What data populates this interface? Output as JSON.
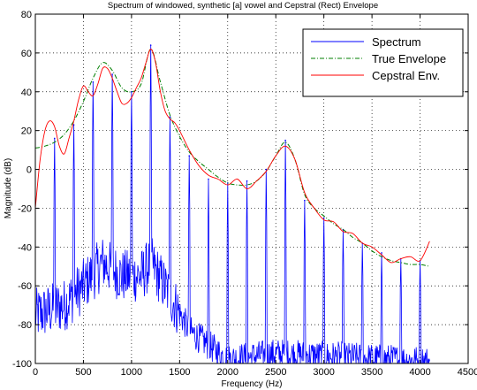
{
  "chart_data": {
    "type": "line",
    "title": "Spectrum of windowed, synthetic [a] vowel and Cepstral (Rect) Envelope",
    "xlabel": "Frequency (Hz)",
    "ylabel": "Magnitude (dB)",
    "xlim": [
      0,
      4500
    ],
    "ylim": [
      -100,
      80
    ],
    "xticks": [
      0,
      500,
      1000,
      1500,
      2000,
      2500,
      3000,
      3500,
      4000,
      4500
    ],
    "yticks": [
      -100,
      -80,
      -60,
      -40,
      -20,
      0,
      20,
      40,
      60,
      80
    ],
    "grid": true,
    "legend_position": "top-right",
    "series": [
      {
        "name": "Spectrum",
        "color": "#0000ff",
        "harmonic_spacing_hz": 200,
        "harmonic_peaks": [
          {
            "x": 200,
            "y": 16
          },
          {
            "x": 400,
            "y": 23
          },
          {
            "x": 600,
            "y": 45
          },
          {
            "x": 800,
            "y": 49
          },
          {
            "x": 1000,
            "y": 40
          },
          {
            "x": 1200,
            "y": 64
          },
          {
            "x": 1400,
            "y": 27
          },
          {
            "x": 1600,
            "y": 7
          },
          {
            "x": 1800,
            "y": -5
          },
          {
            "x": 2000,
            "y": -7
          },
          {
            "x": 2200,
            "y": -6
          },
          {
            "x": 2400,
            "y": 0
          },
          {
            "x": 2600,
            "y": 15
          },
          {
            "x": 2800,
            "y": -16
          },
          {
            "x": 3000,
            "y": -25
          },
          {
            "x": 3200,
            "y": -31
          },
          {
            "x": 3400,
            "y": -38
          },
          {
            "x": 3600,
            "y": -43
          },
          {
            "x": 3800,
            "y": -46
          },
          {
            "x": 4000,
            "y": -47
          }
        ],
        "floor_between_harmonics": [
          {
            "x": 0,
            "y": -75
          },
          {
            "x": 300,
            "y": -70
          },
          {
            "x": 500,
            "y": -60
          },
          {
            "x": 700,
            "y": -48
          },
          {
            "x": 900,
            "y": -55
          },
          {
            "x": 1100,
            "y": -55
          },
          {
            "x": 1200,
            "y": -48
          },
          {
            "x": 1400,
            "y": -65
          },
          {
            "x": 1600,
            "y": -83
          },
          {
            "x": 2000,
            "y": -98
          },
          {
            "x": 2500,
            "y": -95
          },
          {
            "x": 4500,
            "y": -100
          }
        ]
      },
      {
        "name": "True Envelope",
        "color": "#007f00",
        "x": [
          0,
          100,
          200,
          300,
          400,
          500,
          600,
          700,
          800,
          900,
          1000,
          1100,
          1200,
          1300,
          1400,
          1500,
          1600,
          1700,
          1800,
          1900,
          2000,
          2100,
          2200,
          2300,
          2400,
          2500,
          2600,
          2700,
          2800,
          2900,
          3000,
          3100,
          3200,
          3300,
          3400,
          3500,
          3600,
          3700,
          3800,
          3900,
          4000,
          4100
        ],
        "y": [
          11,
          12,
          14,
          18,
          25,
          35,
          47,
          55,
          51,
          42,
          40,
          44,
          62,
          45,
          28,
          17,
          9,
          4,
          0,
          -4,
          -7,
          -8,
          -8,
          -6,
          -1,
          7,
          14,
          5,
          -13,
          -20,
          -24,
          -28,
          -31,
          -35,
          -38,
          -42,
          -45,
          -47,
          -48,
          -49,
          -49,
          -50
        ]
      },
      {
        "name": "Cepstral Env.",
        "color": "#ff0000",
        "x": [
          0,
          50,
          100,
          150,
          200,
          250,
          300,
          350,
          400,
          450,
          500,
          550,
          600,
          650,
          700,
          750,
          800,
          850,
          900,
          950,
          1000,
          1050,
          1100,
          1150,
          1200,
          1250,
          1300,
          1350,
          1400,
          1450,
          1500,
          1600,
          1700,
          1800,
          1900,
          2000,
          2100,
          2200,
          2300,
          2400,
          2500,
          2600,
          2700,
          2800,
          2900,
          3000,
          3100,
          3200,
          3300,
          3400,
          3500,
          3600,
          3700,
          3800,
          3900,
          4000,
          4100
        ],
        "y": [
          -20,
          5,
          20,
          25,
          22,
          12,
          8,
          16,
          25,
          36,
          43,
          40,
          38,
          44,
          52,
          52,
          47,
          40,
          34,
          34,
          37,
          42,
          47,
          55,
          62,
          55,
          40,
          30,
          26,
          24,
          20,
          10,
          2,
          -3,
          -5,
          -8,
          -5,
          -10,
          -6,
          -1,
          7,
          12,
          5,
          -12,
          -20,
          -26,
          -27,
          -32,
          -33,
          -38,
          -40,
          -44,
          -48,
          -46,
          -45,
          -47,
          -37
        ]
      }
    ]
  }
}
